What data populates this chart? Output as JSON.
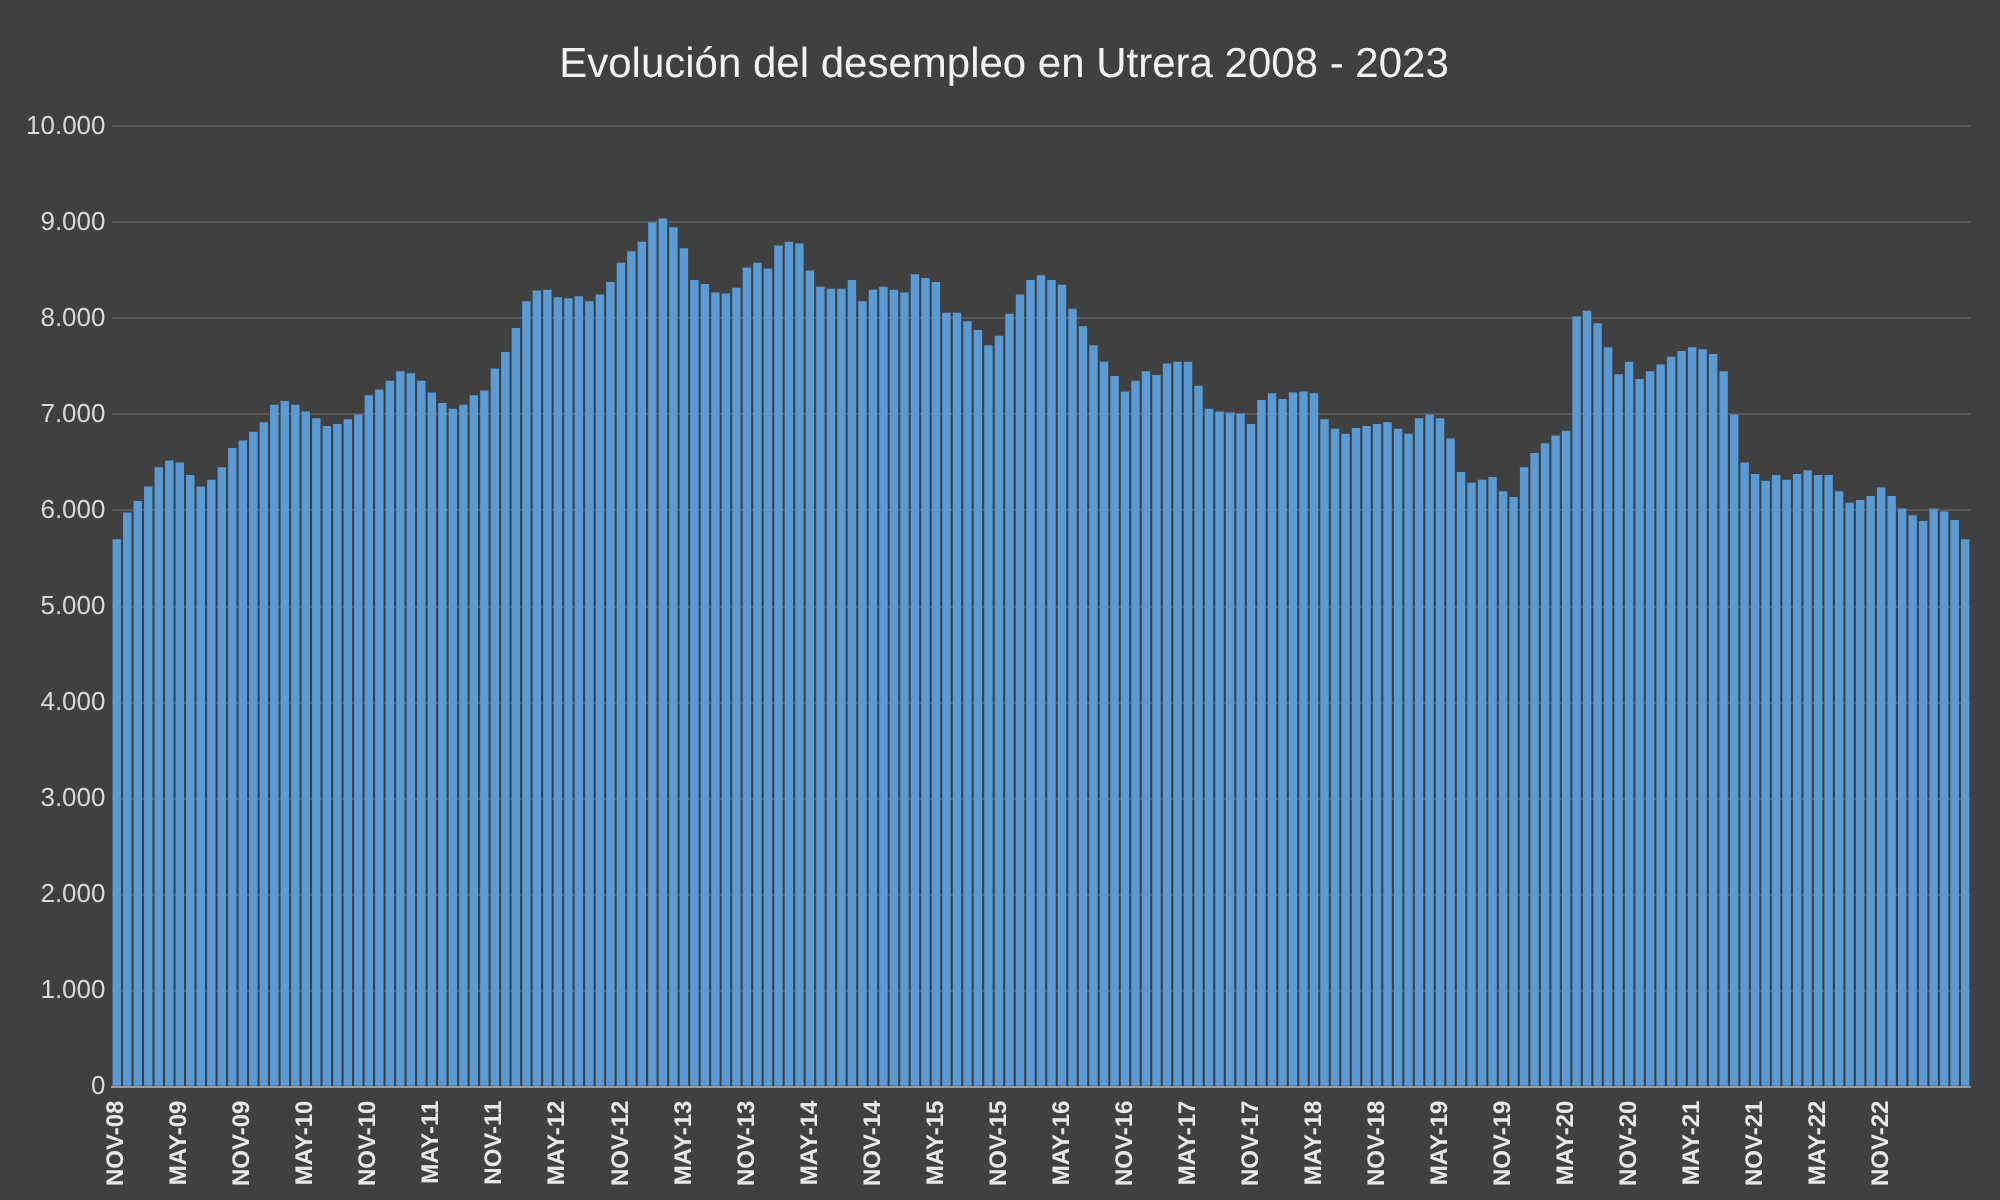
{
  "chart_data": {
    "type": "bar",
    "title": "Evolución del desempleo en Utrera 2008 - 2023",
    "categories": [
      "NOV-08",
      null,
      null,
      null,
      null,
      null,
      "MAY-09",
      null,
      null,
      null,
      null,
      null,
      "NOV-09",
      null,
      null,
      null,
      null,
      null,
      "MAY-10",
      null,
      null,
      null,
      null,
      null,
      "NOV-10",
      null,
      null,
      null,
      null,
      null,
      "MAY-11",
      null,
      null,
      null,
      null,
      null,
      "NOV-11",
      null,
      null,
      null,
      null,
      null,
      "MAY-12",
      null,
      null,
      null,
      null,
      null,
      "NOV-12",
      null,
      null,
      null,
      null,
      null,
      "MAY-13",
      null,
      null,
      null,
      null,
      null,
      "NOV-13",
      null,
      null,
      null,
      null,
      null,
      "MAY-14",
      null,
      null,
      null,
      null,
      null,
      "NOV-14",
      null,
      null,
      null,
      null,
      null,
      "MAY-15",
      null,
      null,
      null,
      null,
      null,
      "NOV-15",
      null,
      null,
      null,
      null,
      null,
      "MAY-16",
      null,
      null,
      null,
      null,
      null,
      "NOV-16",
      null,
      null,
      null,
      null,
      null,
      "MAY-17",
      null,
      null,
      null,
      null,
      null,
      "NOV-17",
      null,
      null,
      null,
      null,
      null,
      "MAY-18",
      null,
      null,
      null,
      null,
      null,
      "NOV-18",
      null,
      null,
      null,
      null,
      null,
      "MAY-19",
      null,
      null,
      null,
      null,
      null,
      "NOV-19",
      null,
      null,
      null,
      null,
      null,
      "MAY-20",
      null,
      null,
      null,
      null,
      null,
      "NOV-20",
      null,
      null,
      null,
      null,
      null,
      "MAY-21",
      null,
      null,
      null,
      null,
      null,
      "NOV-21",
      null,
      null,
      null,
      null,
      null,
      "MAY-22",
      null,
      null,
      null,
      null,
      null,
      "NOV-22",
      null,
      null,
      null,
      null,
      null,
      null,
      null,
      null
    ],
    "values": [
      5700,
      5980,
      6100,
      6250,
      6450,
      6520,
      6500,
      6370,
      6250,
      6320,
      6450,
      6650,
      6730,
      6820,
      6920,
      7100,
      7140,
      7100,
      7030,
      6960,
      6880,
      6900,
      6950,
      7000,
      7200,
      7260,
      7350,
      7450,
      7430,
      7350,
      7230,
      7120,
      7060,
      7100,
      7200,
      7250,
      7480,
      7650,
      7900,
      8180,
      8290,
      8300,
      8220,
      8210,
      8230,
      8180,
      8250,
      8380,
      8580,
      8700,
      8800,
      9000,
      9040,
      8950,
      8730,
      8400,
      8360,
      8270,
      8260,
      8320,
      8530,
      8580,
      8520,
      8760,
      8800,
      8780,
      8500,
      8330,
      8310,
      8310,
      8400,
      8180,
      8300,
      8330,
      8300,
      8270,
      8460,
      8420,
      8380,
      8060,
      8060,
      7970,
      7880,
      7720,
      7820,
      8050,
      8250,
      8400,
      8450,
      8400,
      8350,
      8100,
      7920,
      7720,
      7550,
      7400,
      7240,
      7350,
      7450,
      7410,
      7530,
      7550,
      7550,
      7300,
      7060,
      7030,
      7020,
      7010,
      6900,
      7150,
      7220,
      7160,
      7230,
      7240,
      7220,
      6950,
      6850,
      6800,
      6860,
      6880,
      6900,
      6920,
      6850,
      6800,
      6960,
      7000,
      6960,
      6750,
      6400,
      6290,
      6320,
      6350,
      6200,
      6140,
      6450,
      6600,
      6700,
      6780,
      6830,
      8020,
      8080,
      7950,
      7700,
      7420,
      7550,
      7370,
      7450,
      7520,
      7600,
      7660,
      7700,
      7680,
      7630,
      7450,
      7000,
      6500,
      6380,
      6310,
      6370,
      6320,
      6380,
      6420,
      6370,
      6370,
      6200,
      6080,
      6110,
      6150,
      6240,
      6150,
      6020,
      5950,
      5890,
      6020,
      5990,
      5900,
      5700
    ],
    "color": "#5b9bd5",
    "ylim": [
      0,
      10000
    ],
    "yticks": [
      {
        "value": 0,
        "label": "0"
      },
      {
        "value": 1000,
        "label": "1.000"
      },
      {
        "value": 2000,
        "label": "2.000"
      },
      {
        "value": 3000,
        "label": "3.000"
      },
      {
        "value": 4000,
        "label": "4.000"
      },
      {
        "value": 5000,
        "label": "5.000"
      },
      {
        "value": 6000,
        "label": "6.000"
      },
      {
        "value": 7000,
        "label": "7.000"
      },
      {
        "value": 8000,
        "label": "8.000"
      },
      {
        "value": 9000,
        "label": "9.000"
      },
      {
        "value": 10000,
        "label": "10.000"
      }
    ],
    "grid": "y",
    "legend": false
  }
}
